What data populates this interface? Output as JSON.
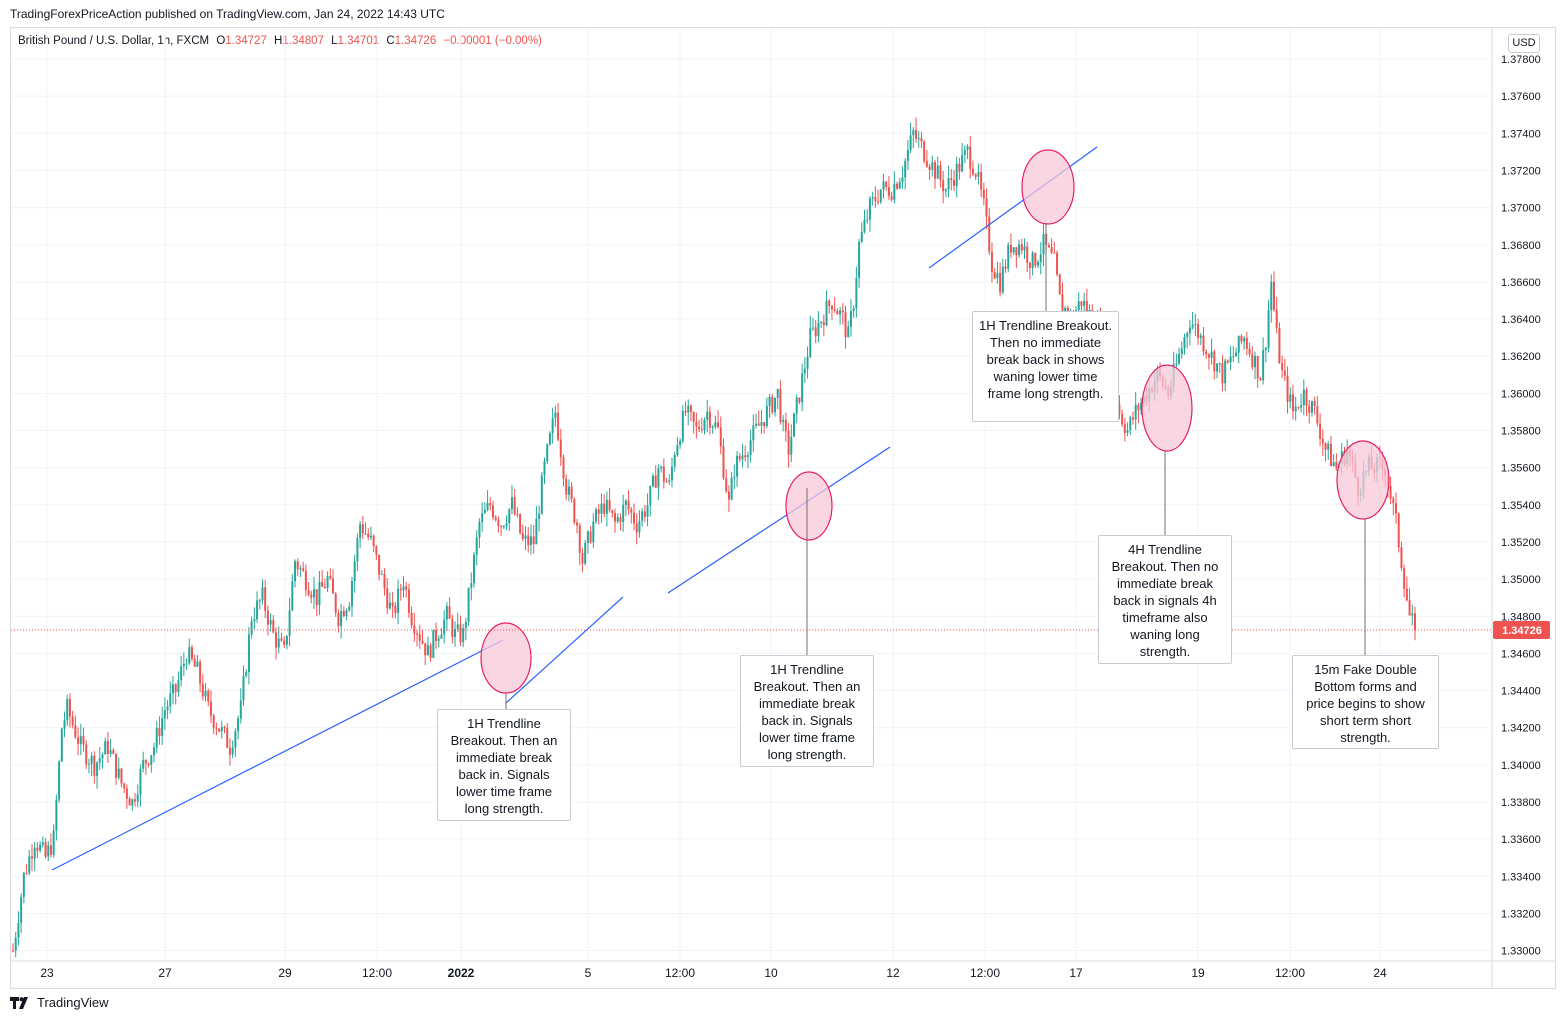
{
  "header": {
    "published_by": "TradingForexPriceAction published on TradingView.com, Jan 24, 2022 14:43 UTC"
  },
  "symbol": {
    "name": "British Pound / U.S. Dollar, 1h, FXCM",
    "o_label": "O",
    "o_value": "1.34727",
    "h_label": "H",
    "h_value": "1.34807",
    "l_label": "L",
    "l_value": "1.34701",
    "c_label": "C",
    "c_value": "1.34726",
    "change": "−0.00001 (−0.00%)"
  },
  "currency_button": "USD",
  "footer": {
    "brand": "TradingView"
  },
  "colors": {
    "up": "#26a69a",
    "down": "#ef5350",
    "trendline": "#2962ff",
    "highlight_fill": "#f8c8d8",
    "highlight_stroke": "#e91e63",
    "price_tag": "#ef5350"
  },
  "chart_data": {
    "type": "candlestick",
    "ylim": [
      1.329,
      1.379
    ],
    "y_ticks": [
      "1.37800",
      "1.37600",
      "1.37400",
      "1.37200",
      "1.37000",
      "1.36800",
      "1.36600",
      "1.36400",
      "1.36200",
      "1.36000",
      "1.35800",
      "1.35600",
      "1.35400",
      "1.35200",
      "1.35000",
      "1.34800",
      "1.34600",
      "1.34400",
      "1.34200",
      "1.34000",
      "1.33800",
      "1.33600",
      "1.33400",
      "1.33200",
      "1.33000"
    ],
    "x_ticks": [
      "23",
      "27",
      "29",
      "12:00",
      "2022",
      "5",
      "12:00",
      "10",
      "12",
      "12:00",
      "17",
      "19",
      "12:00",
      "24"
    ],
    "last_price": "1.34726",
    "last_price_value": 1.34726,
    "price_path": [
      [
        0,
        1.33
      ],
      [
        4,
        1.334
      ],
      [
        8,
        1.336
      ],
      [
        12,
        1.335
      ],
      [
        15,
        1.336
      ],
      [
        18,
        1.342
      ],
      [
        20,
        1.343
      ],
      [
        25,
        1.341
      ],
      [
        30,
        1.34
      ],
      [
        35,
        1.341
      ],
      [
        40,
        1.339
      ],
      [
        44,
        1.338
      ],
      [
        48,
        1.34
      ],
      [
        52,
        1.341
      ],
      [
        56,
        1.343
      ],
      [
        60,
        1.344
      ],
      [
        64,
        1.346
      ],
      [
        68,
        1.345
      ],
      [
        72,
        1.343
      ],
      [
        76,
        1.342
      ],
      [
        80,
        1.341
      ],
      [
        84,
        1.343
      ],
      [
        88,
        1.348
      ],
      [
        92,
        1.349
      ],
      [
        96,
        1.347
      ],
      [
        100,
        1.346
      ],
      [
        104,
        1.351
      ],
      [
        108,
        1.35
      ],
      [
        112,
        1.349
      ],
      [
        116,
        1.35
      ],
      [
        120,
        1.348
      ],
      [
        124,
        1.349
      ],
      [
        128,
        1.353
      ],
      [
        132,
        1.352
      ],
      [
        136,
        1.35
      ],
      [
        140,
        1.348
      ],
      [
        144,
        1.35
      ],
      [
        147,
        1.348
      ],
      [
        150,
        1.347
      ],
      [
        153,
        1.346
      ],
      [
        156,
        1.347
      ],
      [
        160,
        1.348
      ],
      [
        163,
        1.347
      ],
      [
        166,
        1.347
      ],
      [
        168,
        1.349
      ],
      [
        172,
        1.353
      ],
      [
        176,
        1.354
      ],
      [
        180,
        1.353
      ],
      [
        184,
        1.354
      ],
      [
        188,
        1.352
      ],
      [
        192,
        1.352
      ],
      [
        196,
        1.356
      ],
      [
        200,
        1.359
      ],
      [
        204,
        1.355
      ],
      [
        208,
        1.353
      ],
      [
        210,
        1.351
      ],
      [
        214,
        1.353
      ],
      [
        218,
        1.354
      ],
      [
        222,
        1.353
      ],
      [
        226,
        1.354
      ],
      [
        230,
        1.353
      ],
      [
        234,
        1.354
      ],
      [
        238,
        1.356
      ],
      [
        242,
        1.355
      ],
      [
        244,
        1.357
      ],
      [
        248,
        1.359
      ],
      [
        252,
        1.358
      ],
      [
        256,
        1.359
      ],
      [
        260,
        1.358
      ],
      [
        262,
        1.356
      ],
      [
        264,
        1.354
      ],
      [
        266,
        1.356
      ],
      [
        270,
        1.357
      ],
      [
        274,
        1.358
      ],
      [
        278,
        1.359
      ],
      [
        282,
        1.36
      ],
      [
        284,
        1.358
      ],
      [
        286,
        1.357
      ],
      [
        290,
        1.36
      ],
      [
        294,
        1.363
      ],
      [
        298,
        1.364
      ],
      [
        302,
        1.365
      ],
      [
        306,
        1.364
      ],
      [
        308,
        1.363
      ],
      [
        310,
        1.365
      ],
      [
        312,
        1.368
      ],
      [
        316,
        1.37
      ],
      [
        320,
        1.371
      ],
      [
        324,
        1.371
      ],
      [
        328,
        1.372
      ],
      [
        332,
        1.374
      ],
      [
        336,
        1.373
      ],
      [
        340,
        1.372
      ],
      [
        344,
        1.371
      ],
      [
        348,
        1.372
      ],
      [
        352,
        1.373
      ],
      [
        355,
        1.372
      ],
      [
        358,
        1.37
      ],
      [
        361,
        1.367
      ],
      [
        364,
        1.366
      ],
      [
        368,
        1.368
      ],
      [
        372,
        1.368
      ],
      [
        376,
        1.367
      ],
      [
        380,
        1.368
      ],
      [
        384,
        1.367
      ],
      [
        386,
        1.365
      ],
      [
        390,
        1.364
      ],
      [
        394,
        1.365
      ],
      [
        398,
        1.364
      ],
      [
        402,
        1.363
      ],
      [
        405,
        1.361
      ],
      [
        408,
        1.359
      ],
      [
        411,
        1.358
      ],
      [
        414,
        1.359
      ],
      [
        418,
        1.36
      ],
      [
        422,
        1.361
      ],
      [
        426,
        1.36
      ],
      [
        430,
        1.362
      ],
      [
        434,
        1.364
      ],
      [
        438,
        1.363
      ],
      [
        442,
        1.362
      ],
      [
        446,
        1.361
      ],
      [
        450,
        1.362
      ],
      [
        454,
        1.363
      ],
      [
        457,
        1.362
      ],
      [
        460,
        1.361
      ],
      [
        462,
        1.363
      ],
      [
        464,
        1.366
      ],
      [
        466,
        1.363
      ],
      [
        468,
        1.361
      ],
      [
        472,
        1.359
      ],
      [
        476,
        1.36
      ],
      [
        480,
        1.359
      ],
      [
        484,
        1.357
      ],
      [
        488,
        1.356
      ],
      [
        492,
        1.357
      ],
      [
        496,
        1.355
      ],
      [
        500,
        1.356
      ],
      [
        504,
        1.356
      ],
      [
        506,
        1.356
      ],
      [
        510,
        1.353
      ],
      [
        513,
        1.35
      ],
      [
        515,
        1.348
      ],
      [
        517,
        1.3473
      ]
    ]
  },
  "annotations": [
    {
      "id": "a1",
      "text": "1H Trendline Breakout. Then an immediate break back in. Signals lower time frame long strength."
    },
    {
      "id": "a2",
      "text": "1H Trendline Breakout. Then an immediate break back in. Signals lower time frame long strength."
    },
    {
      "id": "a3",
      "text": "1H Trendline Breakout. Then no immediate break back in shows waning lower time frame long strength."
    },
    {
      "id": "a4",
      "text": "4H Trendline Breakout. Then no immediate break back in signals 4h timeframe also waning long strength."
    },
    {
      "id": "a5",
      "text": "15m Fake Double Bottom forms and price begins to show short term short strength."
    }
  ]
}
